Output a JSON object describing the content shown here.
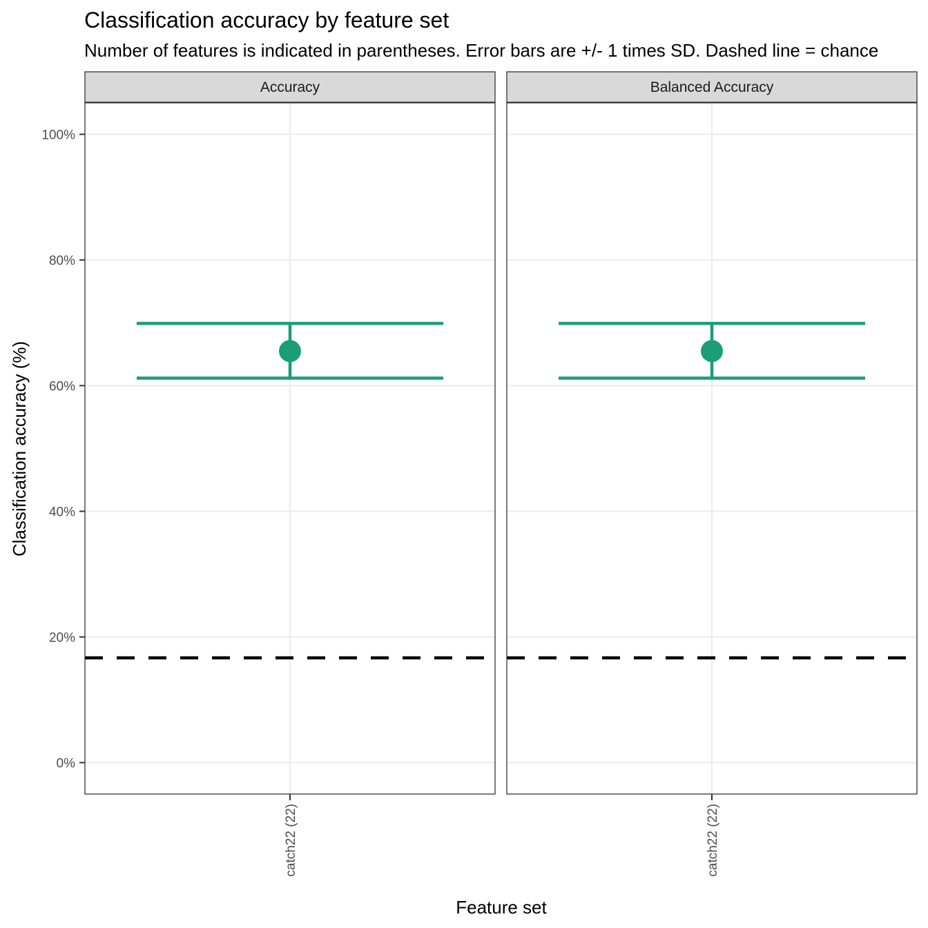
{
  "chart_data": {
    "type": "scatter",
    "title": "Classification accuracy by feature set",
    "subtitle": "Number of features is indicated in parentheses. Error bars are +/- 1 times SD. Dashed line = chance",
    "xlabel": "Feature set",
    "ylabel": "Classification accuracy (%)",
    "ylim": [
      -5,
      105
    ],
    "y_ticks": [
      0,
      20,
      40,
      60,
      80,
      100
    ],
    "y_tick_labels": [
      "0%",
      "20%",
      "40%",
      "60%",
      "80%",
      "100%"
    ],
    "categories": [
      "catch22 (22)"
    ],
    "chance_level": 16.67,
    "grid": true,
    "point_color": "#1B9E77",
    "panels": [
      {
        "label": "Accuracy",
        "points": [
          {
            "category": "catch22 (22)",
            "mean": 65.5,
            "lower": 61.2,
            "upper": 69.9
          }
        ]
      },
      {
        "label": "Balanced Accuracy",
        "points": [
          {
            "category": "catch22 (22)",
            "mean": 65.5,
            "lower": 61.2,
            "upper": 69.9
          }
        ]
      }
    ]
  }
}
